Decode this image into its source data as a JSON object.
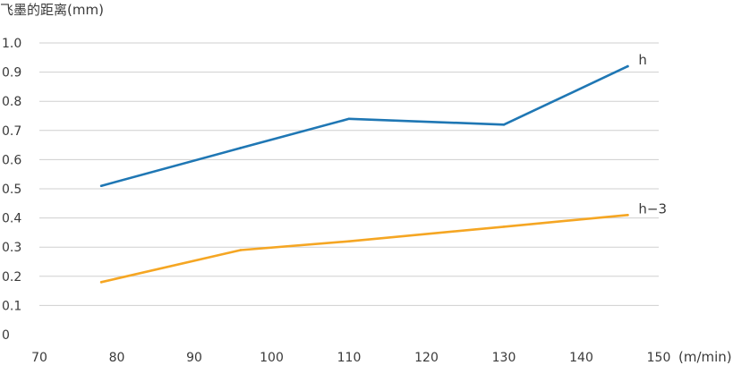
{
  "chart_data": {
    "type": "line",
    "ylabel": "飞墨的距离(mm)",
    "xlabel": "(m/min)",
    "xlim": [
      70,
      150
    ],
    "ylim": [
      0,
      1.0
    ],
    "x_ticks": [
      "70",
      "80",
      "90",
      "100",
      "110",
      "120",
      "130",
      "140",
      "150"
    ],
    "y_ticks": [
      "0",
      "0.1",
      "0.2",
      "0.3",
      "0.4",
      "0.5",
      "0.6",
      "0.7",
      "0.8",
      "0.9",
      "1.0"
    ],
    "grid": "horizontal",
    "series": [
      {
        "name": "h",
        "color": "#1f77b4",
        "x": [
          78,
          96,
          110,
          130,
          146
        ],
        "y": [
          0.51,
          0.64,
          0.74,
          0.72,
          0.92
        ]
      },
      {
        "name": "h−3",
        "color": "#f5a623",
        "x": [
          78,
          96,
          110,
          130,
          146
        ],
        "y": [
          0.18,
          0.29,
          0.32,
          0.37,
          0.41
        ]
      }
    ]
  }
}
